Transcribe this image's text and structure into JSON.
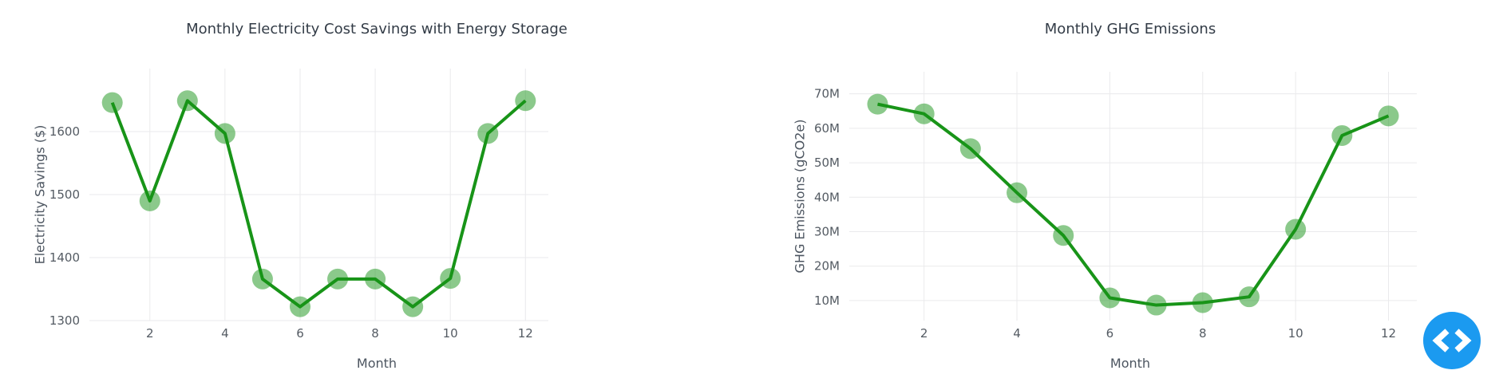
{
  "page": {
    "background": "#ffffff"
  },
  "colors": {
    "series_green": "#189418",
    "marker_green_blend": "#8cc98c",
    "grid": "#eaeaec",
    "tick_text": "#545b63",
    "title_text": "#333c47",
    "button_blue": "#1b9af0",
    "button_glyph": "#ffffff"
  },
  "chart_data": [
    {
      "type": "line",
      "mode": "lines+markers",
      "title": "Monthly Electricity Cost Savings with Energy Storage",
      "xlabel": "Month",
      "ylabel": "Electricity Savings ($)",
      "x": [
        1,
        2,
        3,
        4,
        5,
        6,
        7,
        8,
        9,
        10,
        11,
        12
      ],
      "y": [
        1646,
        1490,
        1649,
        1597,
        1366,
        1322,
        1366,
        1366,
        1322,
        1367,
        1597,
        1649
      ],
      "x_range": [
        0.39,
        12.61
      ],
      "y_range": [
        1300,
        1700
      ],
      "x_ticks": [
        2,
        4,
        6,
        8,
        10,
        12
      ],
      "x_tick_labels": [
        "2",
        "4",
        "6",
        "8",
        "10",
        "12"
      ],
      "y_ticks": [
        1300,
        1400,
        1500,
        1600
      ],
      "y_tick_labels": [
        "1300",
        "1400",
        "1500",
        "1600"
      ],
      "grid": true,
      "legend": "none"
    },
    {
      "type": "line",
      "mode": "lines+markers",
      "title": "Monthly GHG Emissions",
      "xlabel": "Month",
      "ylabel": "GHG Emissions (gCO2e)",
      "x": [
        1,
        2,
        3,
        4,
        5,
        6,
        7,
        8,
        9,
        10,
        11,
        12
      ],
      "y": [
        67000000,
        64200000,
        54100000,
        41300000,
        28900000,
        10800000,
        8700000,
        9400000,
        11100000,
        30700000,
        57900000,
        63600000
      ],
      "x_range": [
        0.39,
        12.61
      ],
      "y_range": [
        4200000,
        76400000
      ],
      "x_ticks": [
        2,
        4,
        6,
        8,
        10,
        12
      ],
      "x_tick_labels": [
        "2",
        "4",
        "6",
        "8",
        "10",
        "12"
      ],
      "y_ticks": [
        10000000,
        20000000,
        30000000,
        40000000,
        50000000,
        60000000,
        70000000
      ],
      "y_tick_labels": [
        "10M",
        "20M",
        "30M",
        "40M",
        "50M",
        "60M",
        "70M"
      ],
      "grid": true,
      "legend": "none"
    }
  ],
  "floating_button": {
    "icon": "code-angle-brackets-icon"
  }
}
